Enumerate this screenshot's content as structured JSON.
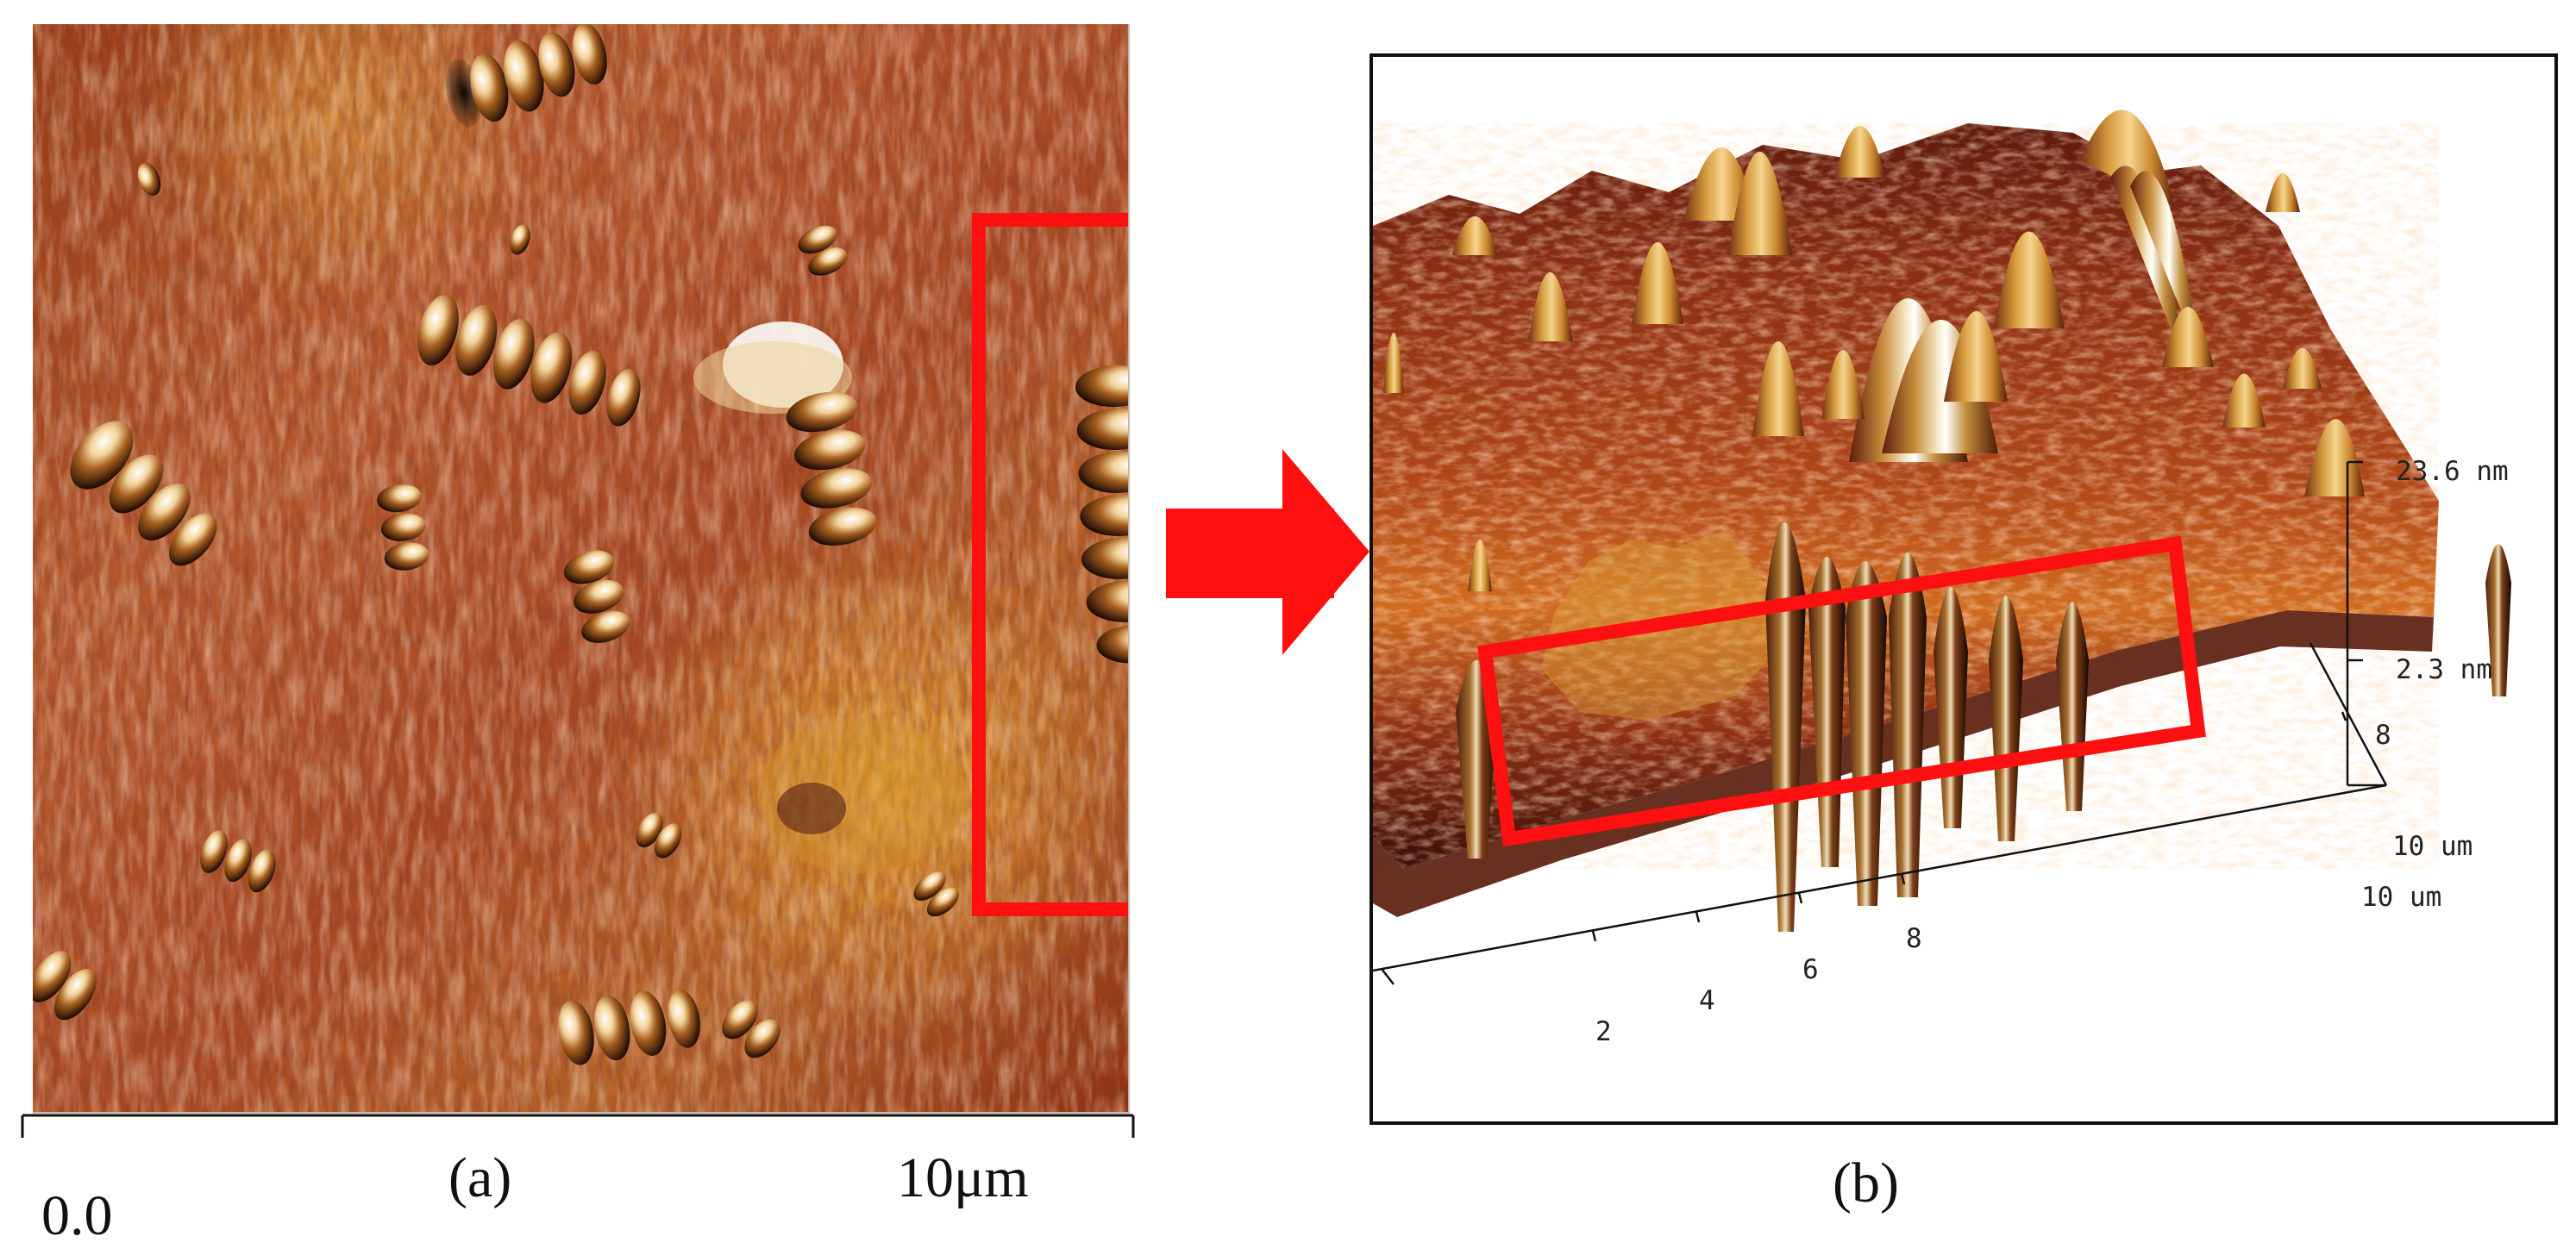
{
  "figure": {
    "scale_start": "0.0",
    "scale_end": "10μm",
    "caption_a": "(a)",
    "caption_b": "(b)"
  },
  "plot_3d": {
    "z_top": "23.6 nm",
    "z_mid": "2.3 nm",
    "y_end": "10 um",
    "x_end": "10 um",
    "x_ticks": [
      "2",
      "4",
      "6",
      "8"
    ],
    "y_tick": "8"
  },
  "colors": {
    "highlight": "#ff1010",
    "frame": "#111111"
  }
}
